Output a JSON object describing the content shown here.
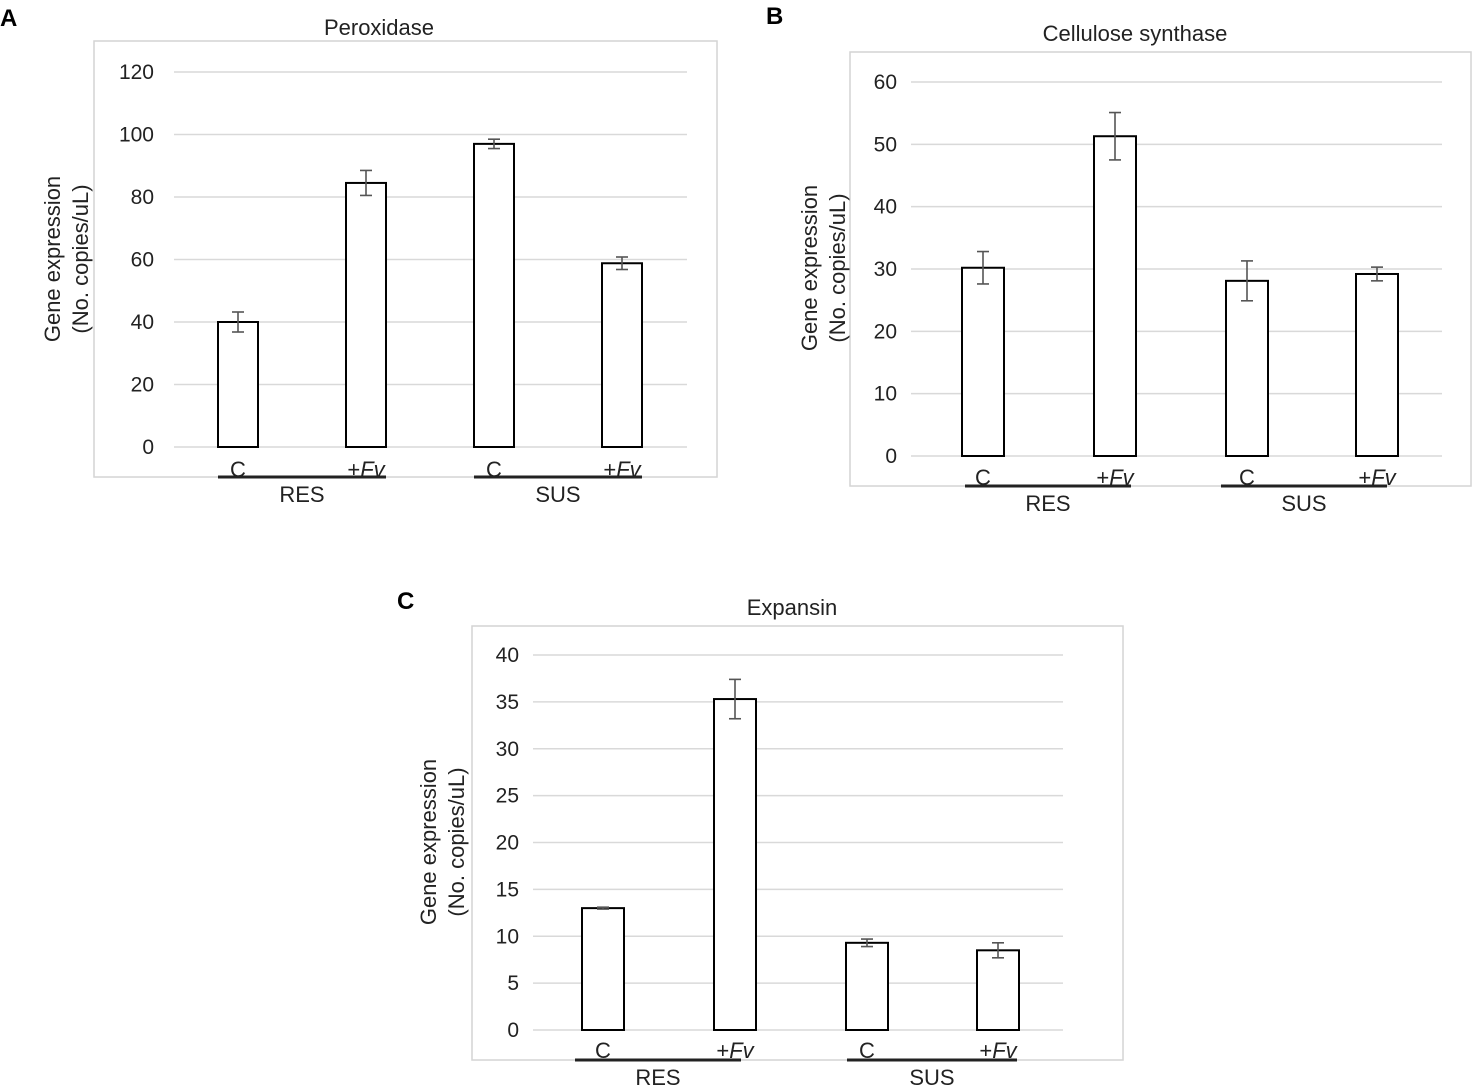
{
  "chart_data": [
    {
      "panel": "A",
      "type": "bar",
      "title": "Peroxidase",
      "ylabel_line1": "Gene expression",
      "ylabel_line2": "(No. copies/uL)",
      "ylim": [
        0,
        120
      ],
      "yticks": [
        0,
        20,
        40,
        60,
        80,
        100,
        120
      ],
      "categories": [
        {
          "label": "C",
          "italic": ""
        },
        {
          "label": "+",
          "italic": "Fv"
        },
        {
          "label": "C",
          "italic": ""
        },
        {
          "label": "+",
          "italic": "Fv"
        }
      ],
      "groups": [
        "RES",
        "SUS"
      ],
      "values": [
        40,
        84.5,
        97,
        58.8
      ],
      "errors": [
        3.2,
        4.0,
        1.5,
        2.0
      ]
    },
    {
      "panel": "B",
      "type": "bar",
      "title": "Cellulose synthase",
      "ylabel_line1": "Gene expression",
      "ylabel_line2": "(No. copies/uL)",
      "ylim": [
        0,
        60
      ],
      "yticks": [
        0,
        10,
        20,
        30,
        40,
        50,
        60
      ],
      "categories": [
        {
          "label": "C",
          "italic": ""
        },
        {
          "label": "+",
          "italic": "Fv"
        },
        {
          "label": "C",
          "italic": ""
        },
        {
          "label": "+",
          "italic": "Fv"
        }
      ],
      "groups": [
        "RES",
        "SUS"
      ],
      "values": [
        30.2,
        51.3,
        28.1,
        29.2
      ],
      "errors": [
        2.6,
        3.8,
        3.2,
        1.1
      ]
    },
    {
      "panel": "C",
      "type": "bar",
      "title": "Expansin",
      "ylabel_line1": "Gene expression",
      "ylabel_line2": "(No. copies/uL)",
      "ylim": [
        0,
        40
      ],
      "yticks": [
        0,
        5,
        10,
        15,
        20,
        25,
        30,
        35,
        40
      ],
      "categories": [
        {
          "label": "C",
          "italic": ""
        },
        {
          "label": "+",
          "italic": "Fv"
        },
        {
          "label": "C",
          "italic": ""
        },
        {
          "label": "+",
          "italic": "Fv"
        }
      ],
      "groups": [
        "RES",
        "SUS"
      ],
      "values": [
        13,
        35.3,
        9.3,
        8.5
      ],
      "errors": [
        0.1,
        2.1,
        0.4,
        0.8
      ]
    }
  ]
}
